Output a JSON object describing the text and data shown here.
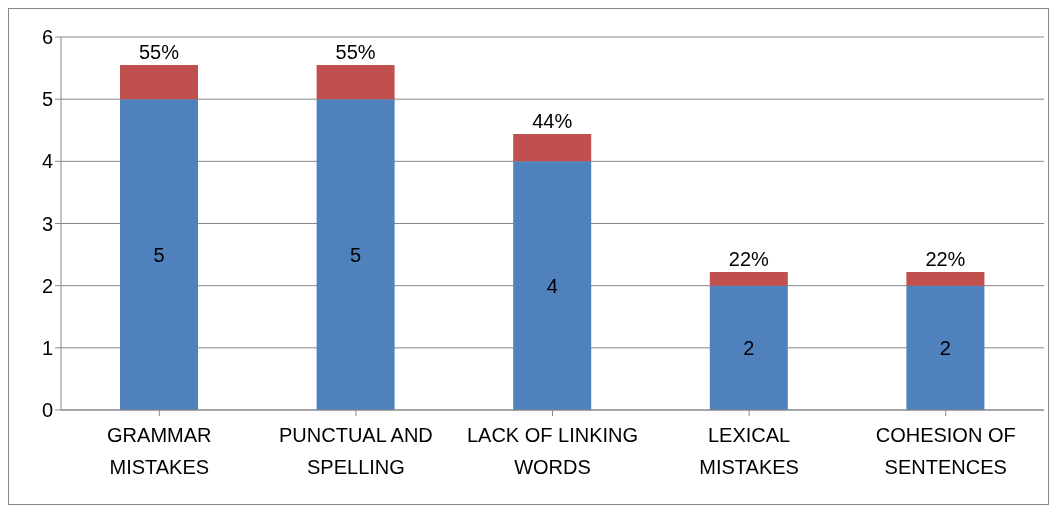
{
  "chart_data": {
    "type": "bar",
    "stacked": true,
    "categories": [
      "GRAMMAR MISTAKES",
      "PUNCTUAL AND SPELLING",
      "LACK OF LINKING WORDS",
      "LEXICAL MISTAKES",
      "COHESION OF SENTENCES"
    ],
    "series": [
      {
        "color": "#4f81bd",
        "values": [
          5,
          5,
          4,
          2,
          2
        ],
        "value_labels": [
          "5",
          "5",
          "4",
          "2",
          "2"
        ]
      },
      {
        "color": "#c0504d",
        "values": [
          0.55,
          0.55,
          0.44,
          0.22,
          0.22
        ],
        "value_labels": [
          "55%",
          "55%",
          "44%",
          "22%",
          "22%"
        ]
      }
    ],
    "ylim": [
      0,
      6
    ],
    "yticks": [
      0,
      1,
      2,
      3,
      4,
      5,
      6
    ],
    "grid": "y",
    "legend": false
  }
}
